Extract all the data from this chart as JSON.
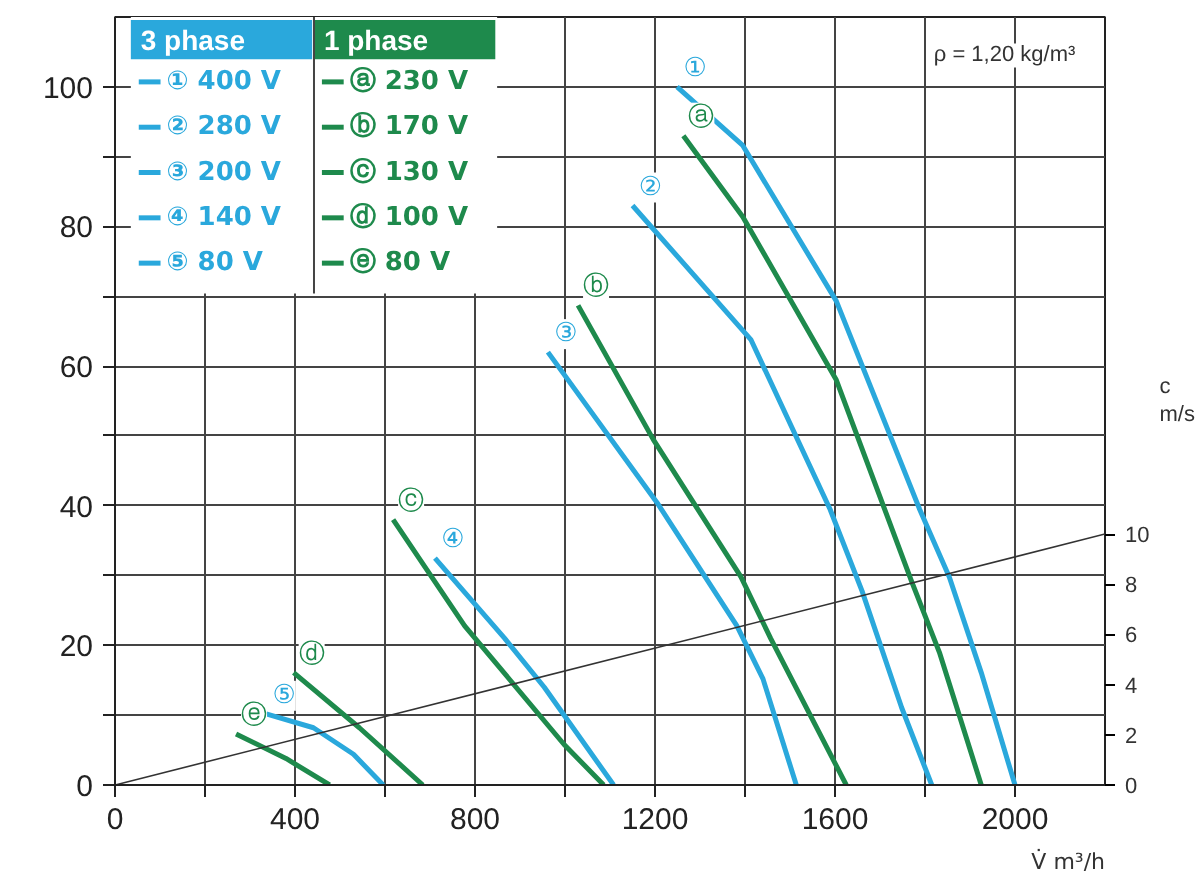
{
  "chart_data": {
    "type": "line",
    "xlabel": "V̇ m³/h",
    "y2label": "c m/s",
    "xlim": [
      0,
      2200
    ],
    "ylim": [
      0,
      110
    ],
    "y2lim": [
      0,
      30.6
    ],
    "xticks": [
      0,
      {
        "value": 200,
        "label": null
      },
      400,
      {
        "value": 600,
        "label": null
      },
      800,
      {
        "value": 1000,
        "label": null
      },
      1200,
      {
        "value": 1400,
        "label": null
      },
      1600,
      {
        "value": 1800,
        "label": null
      },
      2000
    ],
    "yticks": [
      0,
      {
        "value": 10,
        "label": null
      },
      20,
      {
        "value": 30,
        "label": null
      },
      40,
      {
        "value": 50,
        "label": null
      },
      60,
      {
        "value": 70,
        "label": null
      },
      80,
      {
        "value": 90,
        "label": null
      },
      100
    ],
    "y2ticks": [
      0,
      2,
      4,
      6,
      8,
      10
    ],
    "grid": true,
    "legend": "top left",
    "marker": "none",
    "line_style": "solid",
    "series": [
      {
        "name": "① 400 V",
        "color": "#2aa8dc",
        "x": [
          1249,
          1395,
          1603,
          1788,
          1854,
          1925,
          2000
        ],
        "values": [
          100,
          91.6,
          69.3,
          39.5,
          29.8,
          16.1,
          0
        ]
      },
      {
        "name": "② 280 V",
        "color": "#2aa8dc",
        "x": [
          1150,
          1413,
          1589,
          1660,
          1748,
          1815
        ],
        "values": [
          83,
          63.8,
          39.5,
          27.8,
          11.1,
          0
        ]
      },
      {
        "name": "③ 200 V",
        "color": "#2aa8dc",
        "x": [
          962,
          1205,
          1382,
          1440,
          1514
        ],
        "values": [
          62,
          40.4,
          22.8,
          15.2,
          0
        ]
      },
      {
        "name": "④ 140 V",
        "color": "#2aa8dc",
        "x": [
          711,
          866,
          954,
          1108
        ],
        "values": [
          32.5,
          21,
          14,
          0
        ]
      },
      {
        "name": "⑤ 80 V",
        "color": "#2aa8dc",
        "x": [
          336,
          441,
          530,
          596
        ],
        "values": [
          10.2,
          8.2,
          4.4,
          0
        ]
      },
      {
        "name": "ⓐ 230 V",
        "color": "#1e8a4c",
        "x": [
          1263,
          1395,
          1603,
          1770,
          1832,
          1925
        ],
        "values": [
          93,
          81.4,
          58,
          29.2,
          19,
          0
        ]
      },
      {
        "name": "ⓑ 170 V",
        "color": "#1e8a4c",
        "x": [
          1029,
          1196,
          1391,
          1457,
          1625
        ],
        "values": [
          68.7,
          49.5,
          29.8,
          21,
          0
        ]
      },
      {
        "name": "ⓒ 130 V",
        "color": "#1e8a4c",
        "x": [
          618,
          777,
          998,
          1086
        ],
        "values": [
          38,
          22.8,
          5.8,
          0
        ]
      },
      {
        "name": "ⓓ 100 V",
        "color": "#1e8a4c",
        "x": [
          397,
          543,
          684
        ],
        "values": [
          16.1,
          8.2,
          0
        ]
      },
      {
        "name": "ⓔ 80 V",
        "color": "#1e8a4c",
        "x": [
          269,
          380,
          477
        ],
        "values": [
          7.3,
          3.8,
          0
        ]
      },
      {
        "color": "#333333",
        "axis": "y2",
        "x": [
          0,
          2200
        ],
        "values": [
          0,
          10
        ]
      }
    ],
    "annotations": [
      "3 phase",
      "1 phase",
      "ρ = 1,20 kg/m³",
      {
        "text": "①",
        "x": 1249,
        "y": 100
      },
      {
        "text": "②",
        "x": 1150,
        "y": 83
      },
      {
        "text": "③",
        "x": 962,
        "y": 62
      },
      {
        "text": "④",
        "x": 711,
        "y": 32.5
      },
      {
        "text": "⑤",
        "x": 336,
        "y": 10.2
      },
      {
        "text": "ⓐ",
        "x": 1263,
        "y": 93
      },
      {
        "text": "ⓑ",
        "x": 1029,
        "y": 68.7
      },
      {
        "text": "ⓒ",
        "x": 618,
        "y": 38
      },
      {
        "text": "ⓓ",
        "x": 397,
        "y": 16.1
      },
      {
        "text": "ⓔ",
        "x": 269,
        "y": 7.3
      }
    ]
  }
}
